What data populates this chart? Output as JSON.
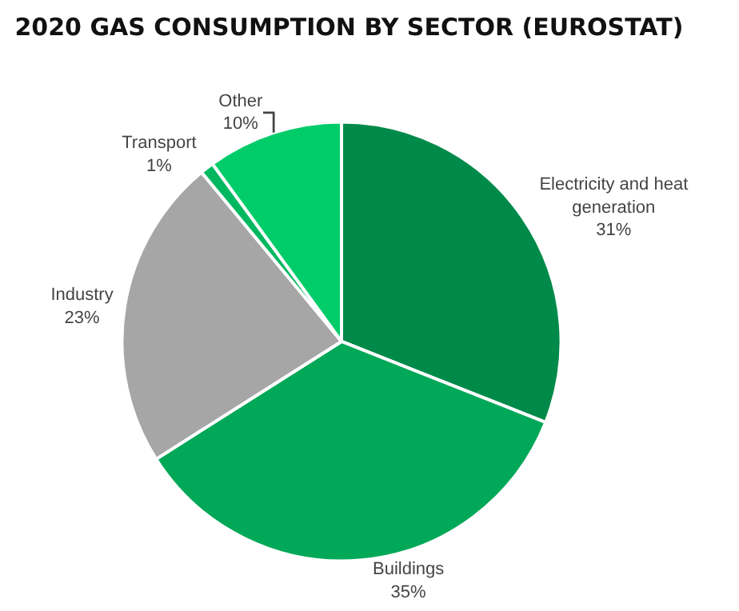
{
  "chart_data": {
    "type": "pie",
    "title": "2020 GAS CONSUMPTION BY SECTOR (EUROSTAT)",
    "categories": [
      "Electricity and heat generation",
      "Buildings",
      "Industry",
      "Transport",
      "Other"
    ],
    "values": [
      31,
      35,
      23,
      1,
      10
    ],
    "value_labels": [
      "31%",
      "35%",
      "23%",
      "1%",
      "10%"
    ],
    "colors": [
      "#008a4a",
      "#00a857",
      "#a6a6a6",
      "#00b860",
      "#00cc6a"
    ],
    "legend": false
  }
}
